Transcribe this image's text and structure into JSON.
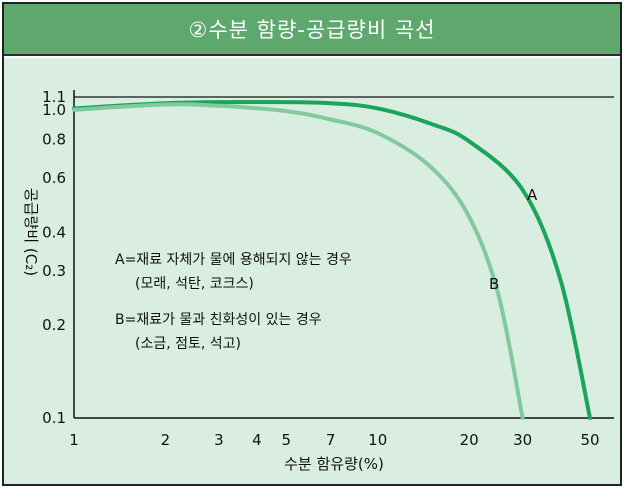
{
  "title": "②수분 함량-공급량비 곡선",
  "chart_data": {
    "type": "line",
    "xlabel": "수분 함유량(%)",
    "ylabel": "공급량비 (C₂)",
    "x_scale": "log",
    "y_scale": "log",
    "xlim": [
      1,
      50
    ],
    "ylim": [
      0.1,
      1.1
    ],
    "x_ticks": [
      "1",
      "2",
      "3",
      "4",
      "5",
      "7",
      "10",
      "20",
      "30",
      "50"
    ],
    "x_tick_values": [
      1,
      2,
      3,
      4,
      5,
      7,
      10,
      20,
      30,
      50
    ],
    "y_ticks": [
      "1.1",
      "1.0",
      "0.8",
      "0.6",
      "0.4",
      "0.3",
      "0.2",
      "0.1"
    ],
    "y_tick_values": [
      1.1,
      1.0,
      0.8,
      0.6,
      0.4,
      0.3,
      0.2,
      0.1
    ],
    "reference_line_y": 1.1,
    "series": [
      {
        "name": "A",
        "color": "#1aa55a",
        "points": [
          [
            1,
            1.01
          ],
          [
            2,
            1.05
          ],
          [
            4,
            1.06
          ],
          [
            7,
            1.05
          ],
          [
            10,
            1.01
          ],
          [
            15,
            0.9
          ],
          [
            20,
            0.79
          ],
          [
            30,
            0.55
          ],
          [
            40,
            0.28
          ],
          [
            50,
            0.1
          ]
        ]
      },
      {
        "name": "B",
        "color": "#82c99f",
        "points": [
          [
            1,
            1.0
          ],
          [
            2,
            1.04
          ],
          [
            3,
            1.03
          ],
          [
            5,
            0.99
          ],
          [
            7,
            0.93
          ],
          [
            10,
            0.84
          ],
          [
            15,
            0.65
          ],
          [
            20,
            0.45
          ],
          [
            25,
            0.25
          ],
          [
            30,
            0.1
          ]
        ]
      }
    ],
    "annotations": {
      "a_line1": "A=재료 자체가 물에 용해되지 않는 경우",
      "a_line2": "(모래, 석탄, 코크스)",
      "b_line1": "B=재료가 물과 친화성이 있는 경우",
      "b_line2": "(소금, 점토, 석고)"
    }
  }
}
